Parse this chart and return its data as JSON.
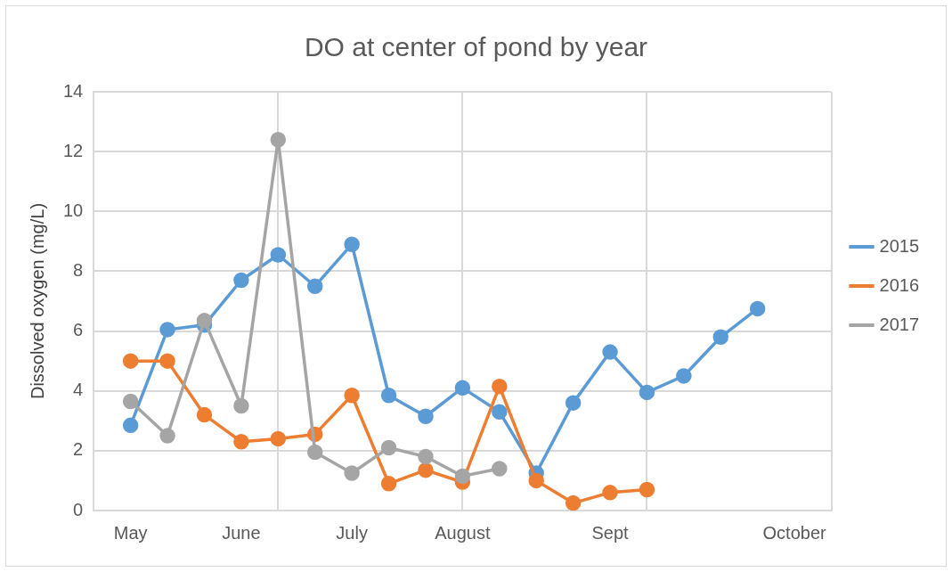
{
  "chart_data": {
    "type": "line",
    "title": "DO at center of pond by year",
    "ylabel": "Dissolved oxygen (mg/L)",
    "categories": [
      null,
      "May",
      null,
      null,
      "June",
      null,
      null,
      "July",
      null,
      null,
      "August",
      null,
      null,
      null,
      "Sept",
      null,
      null,
      null,
      null,
      "October",
      null
    ],
    "series": [
      {
        "name": "2015",
        "color": "#5b9bd5",
        "values": [
          null,
          2.85,
          6.05,
          6.2,
          7.7,
          8.55,
          7.5,
          8.9,
          3.85,
          3.15,
          4.1,
          3.3,
          1.25,
          3.6,
          5.3,
          3.95,
          4.5,
          5.8,
          6.75,
          null,
          null
        ]
      },
      {
        "name": "2016",
        "color": "#ed7d31",
        "values": [
          null,
          5.0,
          5.0,
          3.2,
          2.3,
          2.4,
          2.55,
          3.85,
          0.9,
          1.35,
          0.95,
          4.15,
          1.0,
          0.25,
          0.6,
          0.7,
          null,
          null,
          null,
          null,
          null
        ]
      },
      {
        "name": "2017",
        "color": "#a5a5a5",
        "values": [
          null,
          3.65,
          2.5,
          6.35,
          3.5,
          12.4,
          1.95,
          1.25,
          2.1,
          1.8,
          1.15,
          1.4,
          null,
          null,
          null,
          null,
          null,
          null,
          null,
          null,
          null
        ]
      }
    ],
    "ylim": [
      0,
      14
    ],
    "yticks": [
      0,
      2,
      4,
      6,
      8,
      10,
      12,
      14
    ],
    "grid": true,
    "legend": "right",
    "marker": "circle",
    "line_style": "solid"
  }
}
